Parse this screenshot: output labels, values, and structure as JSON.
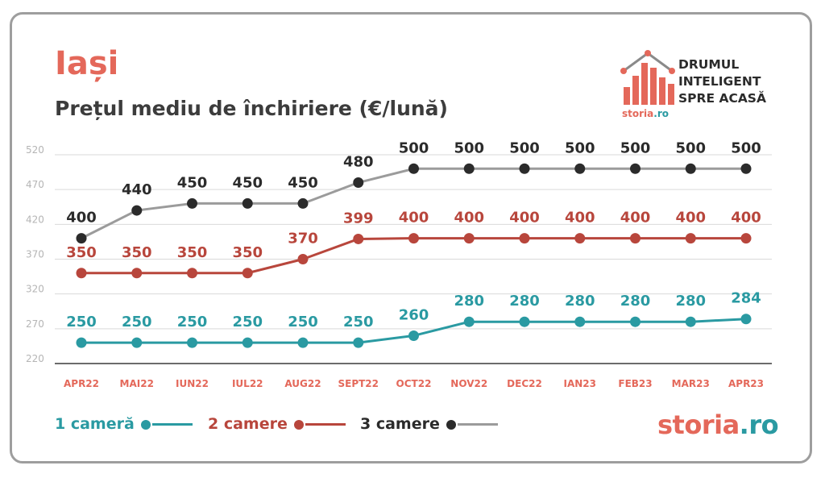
{
  "header": {
    "city": "Iași",
    "subtitle": "Prețul mediu de închiriere (€/lună)"
  },
  "brand": {
    "tagline": [
      "DRUMUL",
      "INTELIGENT",
      "SPRE ACASĂ"
    ],
    "small_logo_name": "storia",
    "small_logo_tld": ".ro",
    "bottom_logo_name": "storia",
    "bottom_logo_tld": ".ro",
    "logo_icon": "house-bars-icon"
  },
  "colors": {
    "one_room": "#2a9aa2",
    "two_rooms": "#b8463c",
    "three_rooms_line": "#9b9b9b",
    "three_rooms_dot": "#2b2b2b",
    "axis_label": "#e4685a",
    "grid": "#d9d9d9",
    "tick": "#b5b5b5"
  },
  "chart_data": {
    "type": "line",
    "title": "Prețul mediu de închiriere (€/lună)",
    "categories": [
      "APR22",
      "MAI22",
      "IUN22",
      "IUL22",
      "AUG22",
      "SEPT22",
      "OCT22",
      "NOV22",
      "DEC22",
      "IAN23",
      "FEB23",
      "MAR23",
      "APR23"
    ],
    "y_ticks": [
      220,
      270,
      320,
      370,
      420,
      470,
      520
    ],
    "ylim": [
      220,
      520
    ],
    "grid": true,
    "legend_position": "bottom-left",
    "series": [
      {
        "name": "1 cameră",
        "values": [
          250,
          250,
          250,
          250,
          250,
          250,
          260,
          280,
          280,
          280,
          280,
          280,
          284
        ],
        "labels": [
          "250",
          "250",
          "250",
          "250",
          "250",
          "250",
          "260",
          "280",
          "280",
          "280",
          "280",
          "280",
          "284"
        ]
      },
      {
        "name": "2 camere",
        "values": [
          350,
          350,
          350,
          350,
          370,
          399,
          400,
          400,
          400,
          400,
          400,
          400,
          400
        ],
        "labels": [
          "350",
          "350",
          "350",
          "350",
          "370",
          "399",
          "400",
          "400",
          "400",
          "400",
          "400",
          "400",
          "400"
        ]
      },
      {
        "name": "3 camere",
        "values": [
          400,
          440,
          450,
          450,
          450,
          480,
          500,
          500,
          500,
          500,
          500,
          500,
          500
        ],
        "labels": [
          "400",
          "440",
          "450",
          "450",
          "450",
          "480",
          "500",
          "500",
          "500",
          "500",
          "500",
          "500",
          "500"
        ]
      }
    ]
  }
}
